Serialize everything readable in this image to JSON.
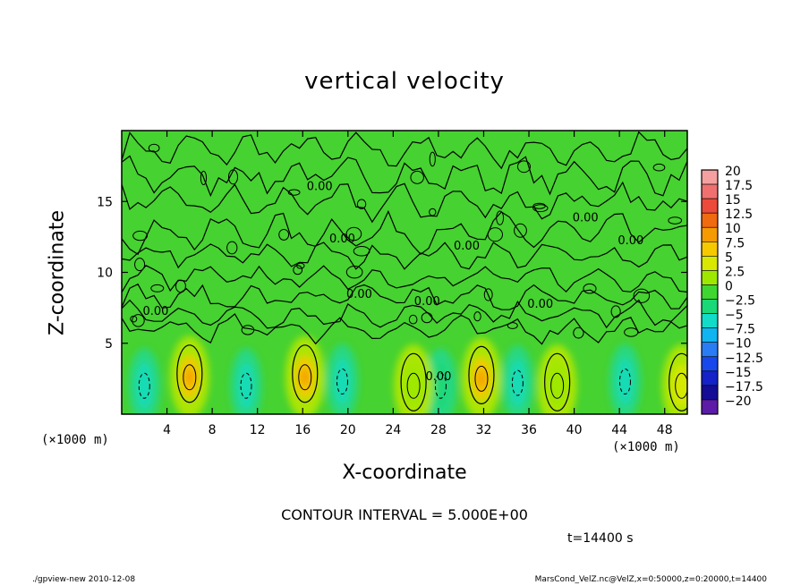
{
  "footer": {
    "left": "./gpview-new  2010-12-08",
    "right": "MarsCond_VelZ.nc@VelZ,x=0:50000,z=0:20000,t=14400"
  },
  "contour_interval": "CONTOUR INTERVAL = 5.000E+00",
  "time_label": "t=14400 s",
  "chart_data": {
    "type": "heatmap",
    "title": "vertical velocity",
    "xlabel": "X-coordinate",
    "ylabel": "Z-coordinate",
    "x_unit_label": "(×1000 m)",
    "x_ticks": [
      4,
      8,
      12,
      16,
      20,
      24,
      28,
      32,
      36,
      40,
      44,
      48
    ],
    "y_ticks": [
      5,
      10,
      15
    ],
    "xlim": [
      0,
      50
    ],
    "ylim": [
      0,
      20
    ],
    "grid": false,
    "contour_labels": [
      {
        "text": "0.00",
        "x": 17.5,
        "z": 15.8
      },
      {
        "text": "0.00",
        "x": 19.5,
        "z": 12.1
      },
      {
        "text": "0.00",
        "x": 30.5,
        "z": 11.6
      },
      {
        "text": "0.00",
        "x": 21.0,
        "z": 8.2
      },
      {
        "text": "0.00",
        "x": 27.0,
        "z": 7.7
      },
      {
        "text": "0.00",
        "x": 3.0,
        "z": 7.0
      },
      {
        "text": "0.00",
        "x": 41.0,
        "z": 13.6
      },
      {
        "text": "0.00",
        "x": 45.0,
        "z": 12.0
      },
      {
        "text": "0.00",
        "x": 28.0,
        "z": 2.4
      },
      {
        "text": "0.00",
        "x": 37.0,
        "z": 7.5
      }
    ],
    "updrafts": [
      {
        "x": 6.0,
        "z": 2.6,
        "peak": 7.5
      },
      {
        "x": 16.2,
        "z": 2.6,
        "peak": 8.0
      },
      {
        "x": 31.8,
        "z": 2.5,
        "peak": 8.0
      },
      {
        "x": 49.5,
        "z": 2.0,
        "peak": 5.0
      },
      {
        "x": 25.8,
        "z": 2.0,
        "peak": 3.0
      },
      {
        "x": 38.5,
        "z": 2.0,
        "peak": 2.5
      }
    ],
    "downdrafts": [
      {
        "x": 2.0,
        "z": 2.0,
        "min": -4.0
      },
      {
        "x": 11.0,
        "z": 2.0,
        "min": -4.0
      },
      {
        "x": 19.5,
        "z": 2.3,
        "min": -5.0
      },
      {
        "x": 28.2,
        "z": 2.0,
        "min": -3.0
      },
      {
        "x": 35.0,
        "z": 2.2,
        "min": -4.0
      },
      {
        "x": 44.5,
        "z": 2.3,
        "min": -5.0
      }
    ],
    "colorbar": {
      "levels": [
        "20",
        "17.5",
        "15",
        "12.5",
        "10",
        "7.5",
        "5",
        "2.5",
        "0",
        "−2.5",
        "−5",
        "−7.5",
        "−10",
        "−12.5",
        "−15",
        "−17.5",
        "−20"
      ],
      "colors": [
        "#f5a0a0",
        "#f07070",
        "#ec4a3a",
        "#f06a10",
        "#f59a00",
        "#f6c800",
        "#d8e800",
        "#9ee800",
        "#3fd632",
        "#18d878",
        "#10dcc8",
        "#10b4f0",
        "#2a7cf5",
        "#1848ec",
        "#1422c8",
        "#140c96",
        "#5c1ca8"
      ]
    }
  }
}
